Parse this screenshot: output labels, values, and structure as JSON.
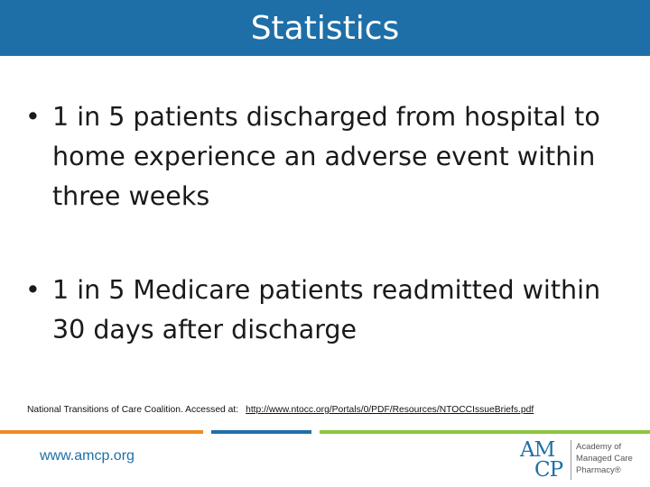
{
  "header": {
    "title": "Statistics"
  },
  "bullets": [
    {
      "marker": "•",
      "text": "1 in 5 patients discharged from hospital to home experience an adverse event within three weeks"
    },
    {
      "marker": "•",
      "text": "1 in 5 Medicare patients readmitted within 30 days after discharge"
    }
  ],
  "citation": {
    "text": "National Transitions of Care Coalition.  Accessed at:",
    "link": "http://www.ntocc.org/Portals/0/PDF/Resources/NTOCCIssueBriefs.pdf"
  },
  "footer": {
    "url": "www.amcp.org",
    "logo": {
      "mark_top": "AM",
      "mark_bottom": "CP",
      "line1": "Academy of",
      "line2": "Managed Care",
      "line3": "Pharmacy®"
    }
  },
  "colors": {
    "title_bar": "#1e6fa8",
    "stripe_orange": "#f08a24",
    "stripe_blue": "#1e6fa8",
    "stripe_green": "#8cc63f"
  }
}
